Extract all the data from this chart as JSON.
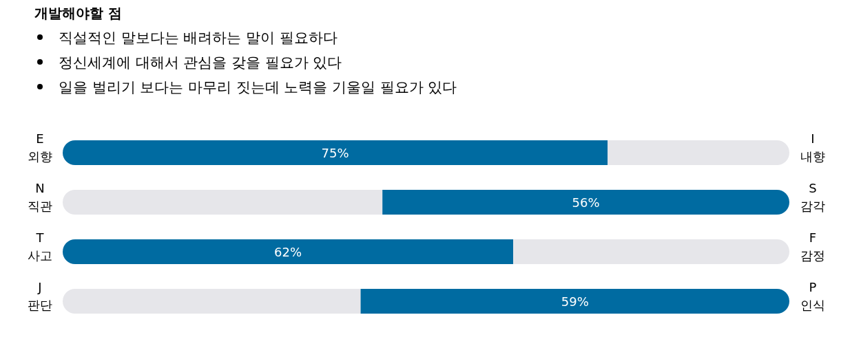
{
  "chart_data": {
    "type": "bar",
    "orientation": "horizontal",
    "stacked": true,
    "title": "개발해야할 점",
    "annotations": [
      "직설적인 말보다는 배려하는 말이 필요하다",
      "정신세계에 대해서 관심을 갖을 필요가 있다",
      "일을 벌리기 보다는 마무리 짓는데 노력을 기울일 필요가 있다"
    ],
    "categories": [
      "E\n외향",
      "N\n직관",
      "T\n사고",
      "J\n판단"
    ],
    "y2_categories": [
      "I\n내향",
      "S\n감각",
      "F\n감정",
      "P\n인식"
    ],
    "xlim": [
      0,
      100
    ],
    "series": [
      {
        "colors": [
          "#006ba1",
          "#e6e6ea",
          "#006ba1",
          "#e6e6ea"
        ],
        "values": [
          75,
          44,
          62,
          41
        ],
        "value_labels": [
          "75%",
          null,
          "62%",
          null
        ]
      },
      {
        "colors": [
          "#e6e6ea",
          "#006ba1",
          "#e6e6ea",
          "#006ba1"
        ],
        "values": [
          25,
          56,
          38,
          59
        ],
        "value_labels": [
          null,
          "56%",
          null,
          "59%"
        ]
      }
    ]
  }
}
